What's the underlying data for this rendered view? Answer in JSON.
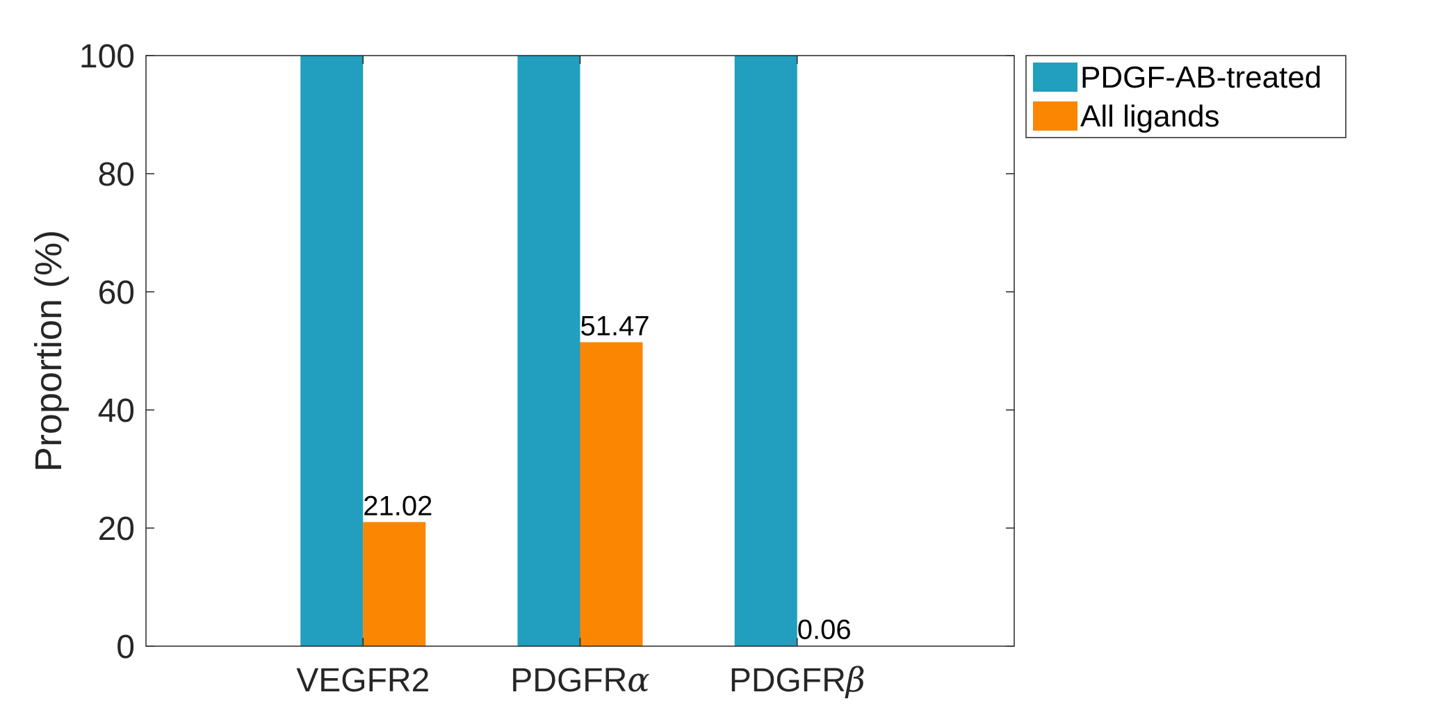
{
  "chart_data": {
    "type": "bar",
    "categories": [
      {
        "text": "VEGFR2",
        "greek": ""
      },
      {
        "text": "PDGFR",
        "greek": "α"
      },
      {
        "text": "PDGFR",
        "greek": "β"
      }
    ],
    "series": [
      {
        "name": "PDGF-AB-treated",
        "color": "#229EBE",
        "values": [
          100,
          100,
          100
        ]
      },
      {
        "name": "All ligands",
        "color": "#FB8601",
        "values": [
          21.02,
          51.47,
          0.06
        ]
      }
    ],
    "data_labels": [
      {
        "series": 1,
        "category": 0,
        "text": "21.02"
      },
      {
        "series": 1,
        "category": 1,
        "text": "51.47"
      },
      {
        "series": 1,
        "category": 2,
        "text": "0.06"
      }
    ],
    "ylabel": "Proportion (%)",
    "xlabel": "",
    "ylim": [
      0,
      100
    ],
    "yticks": [
      0,
      20,
      40,
      60,
      80,
      100
    ],
    "grid": false,
    "legend_position": "outside-top-right"
  }
}
